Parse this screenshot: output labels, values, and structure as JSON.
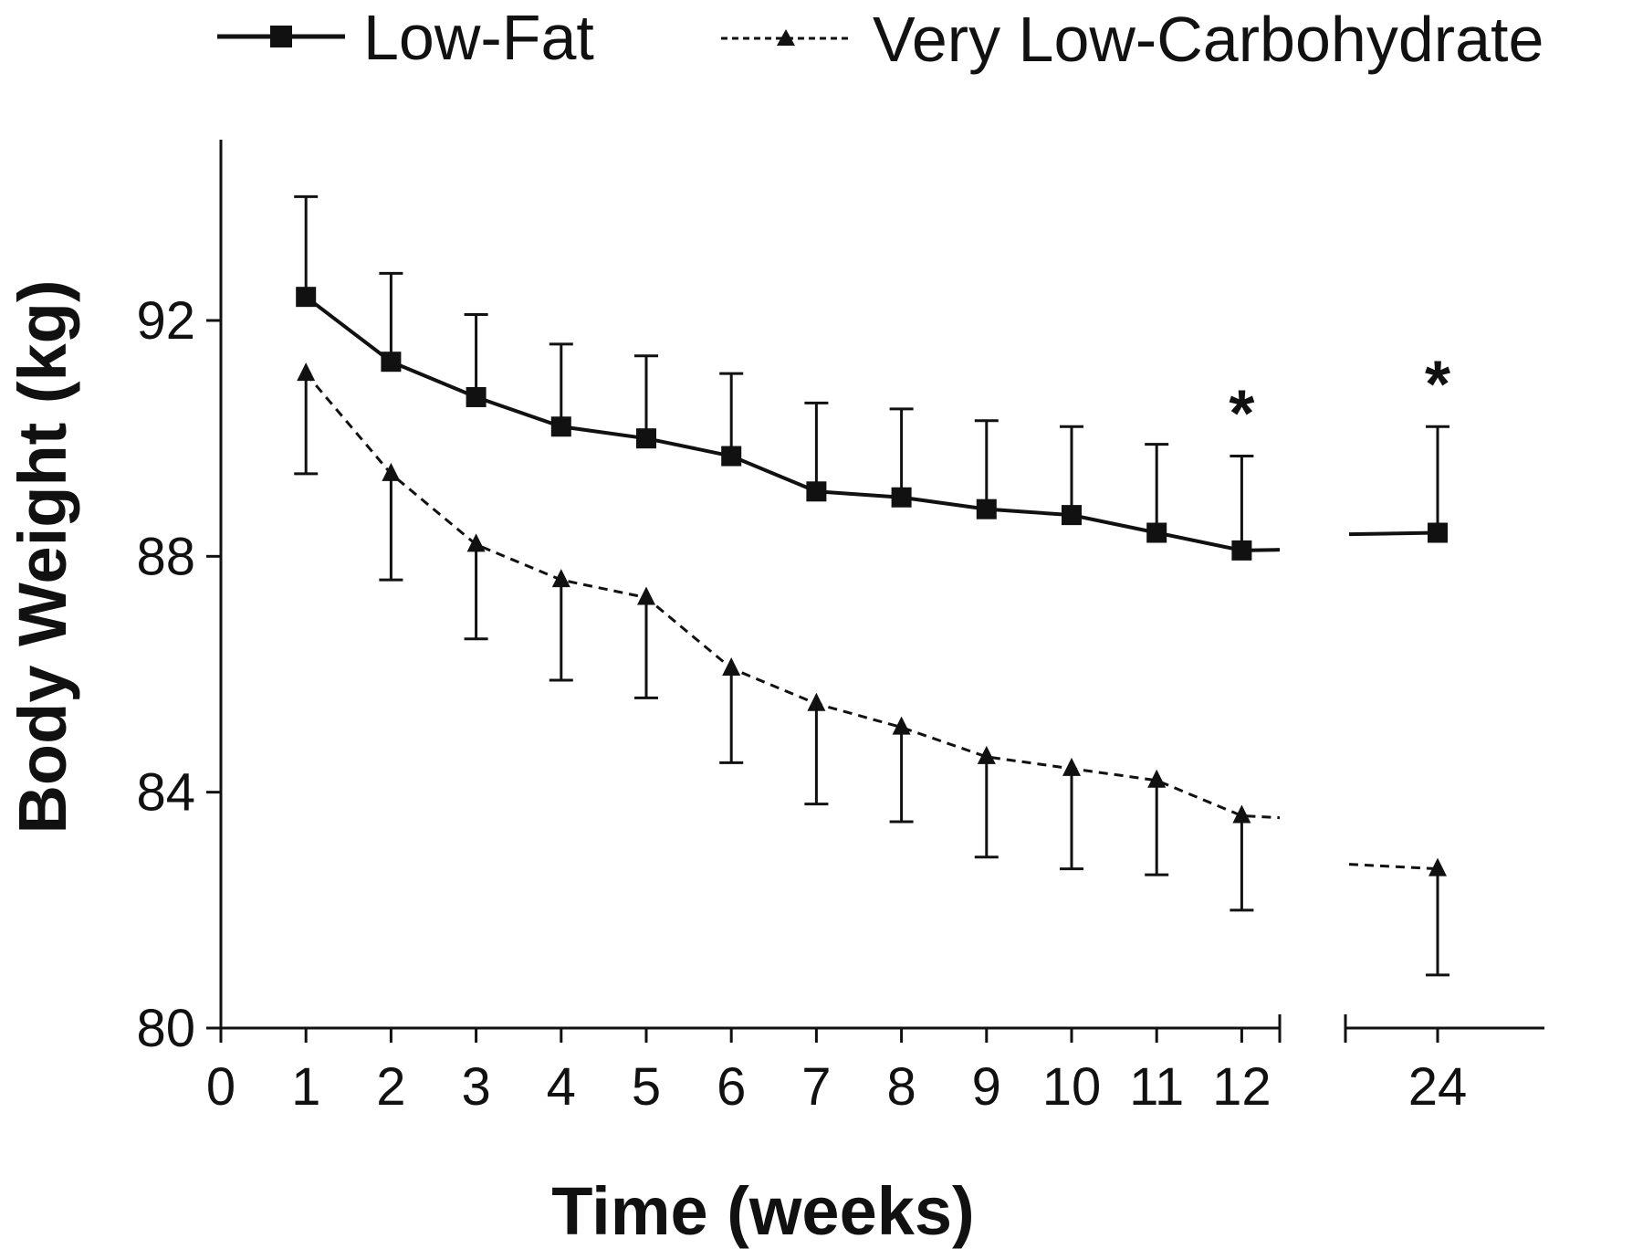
{
  "chart_data": {
    "type": "line",
    "xlabel": "Time (weeks)",
    "ylabel": "Body Weight (kg)",
    "ylim": [
      80,
      95
    ],
    "yticks": [
      80,
      84,
      88,
      92
    ],
    "xticks": [
      0,
      1,
      2,
      3,
      4,
      5,
      6,
      7,
      8,
      9,
      10,
      11,
      12,
      24
    ],
    "axis_break": "between 12 and 24",
    "legend": {
      "position": "top",
      "entries": [
        "Low-Fat",
        "Very Low-Carbohydrate"
      ]
    },
    "series": [
      {
        "name": "Low-Fat",
        "marker": "square",
        "line_style": "solid",
        "x": [
          1,
          2,
          3,
          4,
          5,
          6,
          7,
          8,
          9,
          10,
          11,
          12,
          24
        ],
        "values": [
          92.4,
          91.3,
          90.7,
          90.2,
          90.0,
          89.7,
          89.1,
          89.0,
          88.8,
          88.7,
          88.4,
          88.1,
          88.4
        ],
        "error_upper": [
          94.1,
          92.8,
          92.1,
          91.6,
          91.4,
          91.1,
          90.6,
          90.5,
          90.3,
          90.2,
          89.9,
          89.7,
          90.2
        ]
      },
      {
        "name": "Very Low-Carbohydrate",
        "marker": "triangle",
        "line_style": "dashed",
        "x": [
          1,
          2,
          3,
          4,
          5,
          6,
          7,
          8,
          9,
          10,
          11,
          12,
          24
        ],
        "values": [
          91.1,
          89.4,
          88.2,
          87.6,
          87.3,
          86.1,
          85.5,
          85.1,
          84.6,
          84.4,
          84.2,
          83.6,
          82.7
        ],
        "error_lower": [
          89.4,
          87.6,
          86.6,
          85.9,
          85.6,
          84.5,
          83.8,
          83.5,
          82.9,
          82.7,
          82.6,
          82.0,
          80.9
        ]
      }
    ],
    "annotations": [
      {
        "text": "*",
        "x": 12
      },
      {
        "text": "*",
        "x": 24
      }
    ]
  }
}
